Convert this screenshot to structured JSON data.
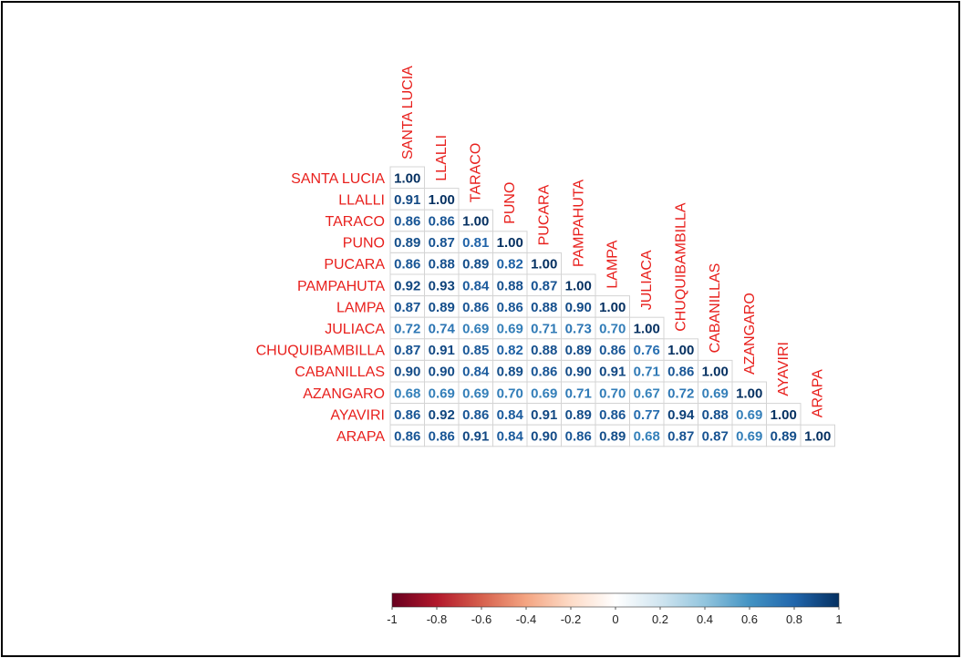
{
  "chart_data": {
    "type": "heatmap",
    "variables": [
      "SANTA LUCIA",
      "LLALLI",
      "TARACO",
      "PUNO",
      "PUCARA",
      "PAMPAHUTA",
      "LAMPA",
      "JULIACA",
      "CHUQUIBAMBILLA",
      "CABANILLAS",
      "AZANGARO",
      "AYAVIRI",
      "ARAPA"
    ],
    "matrix_lower": [
      [
        1.0
      ],
      [
        0.91,
        1.0
      ],
      [
        0.86,
        0.86,
        1.0
      ],
      [
        0.89,
        0.87,
        0.81,
        1.0
      ],
      [
        0.86,
        0.88,
        0.89,
        0.82,
        1.0
      ],
      [
        0.92,
        0.93,
        0.84,
        0.88,
        0.87,
        1.0
      ],
      [
        0.87,
        0.89,
        0.86,
        0.86,
        0.88,
        0.9,
        1.0
      ],
      [
        0.72,
        0.74,
        0.69,
        0.69,
        0.71,
        0.73,
        0.7,
        1.0
      ],
      [
        0.87,
        0.91,
        0.85,
        0.82,
        0.88,
        0.89,
        0.86,
        0.76,
        1.0
      ],
      [
        0.9,
        0.9,
        0.84,
        0.89,
        0.86,
        0.9,
        0.91,
        0.71,
        0.86,
        1.0
      ],
      [
        0.68,
        0.69,
        0.69,
        0.7,
        0.69,
        0.71,
        0.7,
        0.67,
        0.72,
        0.69,
        1.0
      ],
      [
        0.86,
        0.92,
        0.86,
        0.84,
        0.91,
        0.89,
        0.86,
        0.77,
        0.94,
        0.88,
        0.69,
        1.0
      ],
      [
        0.86,
        0.86,
        0.91,
        0.84,
        0.9,
        0.86,
        0.89,
        0.68,
        0.87,
        0.87,
        0.69,
        0.89,
        1.0
      ]
    ],
    "colorbar": {
      "range": [
        -1,
        1
      ],
      "ticks": [
        "-1",
        "-0.8",
        "-0.6",
        "-0.4",
        "-0.2",
        "0",
        "0.2",
        "0.4",
        "0.6",
        "0.8",
        "1"
      ],
      "colors": [
        "#67001f",
        "#b2182b",
        "#d6604d",
        "#f4a582",
        "#fddbc7",
        "#ffffff",
        "#d1e5f0",
        "#92c5de",
        "#4393c3",
        "#2166ac",
        "#053061"
      ]
    },
    "grid": true
  }
}
